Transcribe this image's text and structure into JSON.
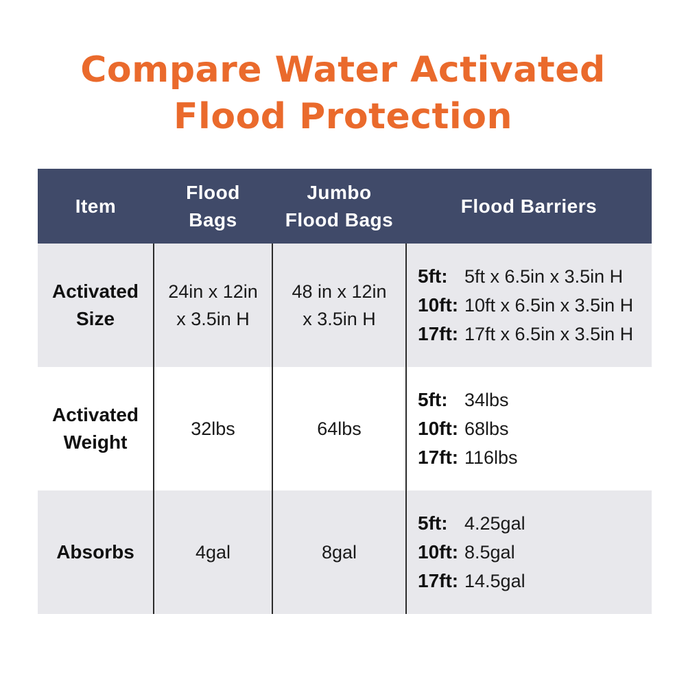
{
  "title": {
    "line1": "Compare Water Activated",
    "line2": "Flood Protection"
  },
  "colors": {
    "title": "#ea6a2c",
    "header_bg": "#404a69",
    "row_alt": "#e8e8ec"
  },
  "table": {
    "headers": {
      "item": "Item",
      "flood_bags": [
        "Flood",
        "Bags"
      ],
      "jumbo_flood_bags": [
        "Jumbo",
        "Flood Bags"
      ],
      "flood_barriers": "Flood Barriers"
    },
    "rows": [
      {
        "label": [
          "Activated",
          "Size"
        ],
        "flood_bags": [
          "24in x 12in",
          "x 3.5in H"
        ],
        "jumbo_flood_bags": [
          "48 in x 12in",
          "x 3.5in H"
        ],
        "flood_barriers": [
          {
            "key": "5ft:",
            "value": "5ft x 6.5in x 3.5in H"
          },
          {
            "key": "10ft:",
            "value": "10ft x 6.5in x 3.5in H"
          },
          {
            "key": "17ft:",
            "value": "17ft x 6.5in x 3.5in H"
          }
        ]
      },
      {
        "label": [
          "Activated",
          "Weight"
        ],
        "flood_bags": "32lbs",
        "jumbo_flood_bags": "64lbs",
        "flood_barriers": [
          {
            "key": "5ft:",
            "value": "34lbs"
          },
          {
            "key": "10ft:",
            "value": "68lbs"
          },
          {
            "key": "17ft:",
            "value": "116lbs"
          }
        ]
      },
      {
        "label": "Absorbs",
        "flood_bags": "4gal",
        "jumbo_flood_bags": "8gal",
        "flood_barriers": [
          {
            "key": "5ft:",
            "value": "4.25gal"
          },
          {
            "key": "10ft:",
            "value": "8.5gal"
          },
          {
            "key": "17ft:",
            "value": "14.5gal"
          }
        ]
      }
    ]
  }
}
